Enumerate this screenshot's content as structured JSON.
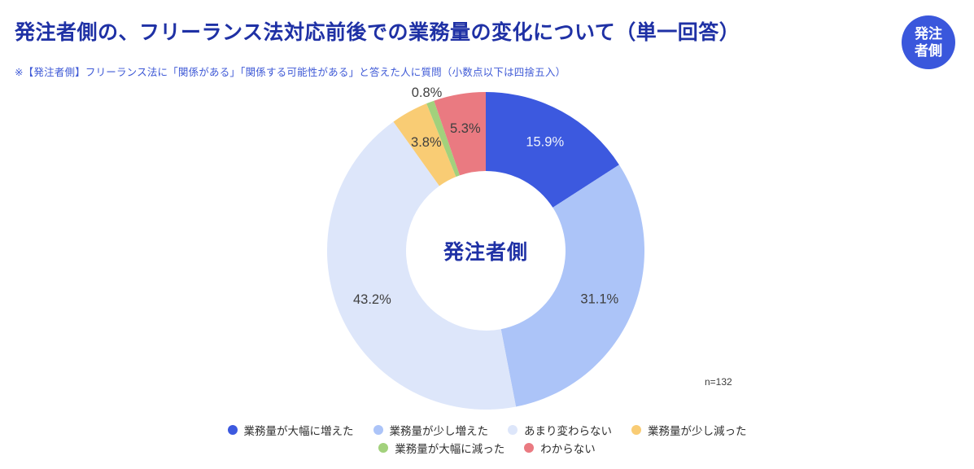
{
  "header": {
    "title": "発注者側の、フリーランス法対応前後での業務量の変化について（単一回答）",
    "note": "※【発注者側】フリーランス法に「関係がある」「関係する可能性がある」と答えた人に質問（小数点以下は四捨五入）",
    "badge_line1": "発注",
    "badge_line2": "者側",
    "badge_color": "#3A57DC",
    "title_color": "#1F31A5"
  },
  "chart_data": {
    "type": "pie",
    "subtype": "donut",
    "title": "発注者側の、フリーランス法対応前後での業務量の変化について（単一回答）",
    "center_label": "発注者側",
    "n_label": "n=132",
    "unit": "%",
    "start_angle_deg": 0,
    "direction": "clockwise",
    "legend_position": "bottom",
    "legend_wrap_after": 4,
    "outside_label_threshold_pct": 2,
    "slices": [
      {
        "label": "業務量が大幅に増えた",
        "value": 15.9,
        "color": "#3C59DF",
        "value_label_color": "#EFF2FC"
      },
      {
        "label": "業務量が少し増えた",
        "value": 31.1,
        "color": "#ACC4F8",
        "value_label_color": "#3F3F3F"
      },
      {
        "label": "あまり変わらない",
        "value": 43.2,
        "color": "#DDE6FA",
        "value_label_color": "#3F3F3F"
      },
      {
        "label": "業務量が少し減った",
        "value": 3.8,
        "color": "#F9CC74",
        "value_label_color": "#3F3F3F"
      },
      {
        "label": "業務量が大幅に減った",
        "value": 0.8,
        "color": "#A2D17C",
        "value_label_color": "#3F3F3F"
      },
      {
        "label": "わからない",
        "value": 5.3,
        "color": "#EA7A81",
        "value_label_color": "#3F3F3F"
      }
    ]
  }
}
